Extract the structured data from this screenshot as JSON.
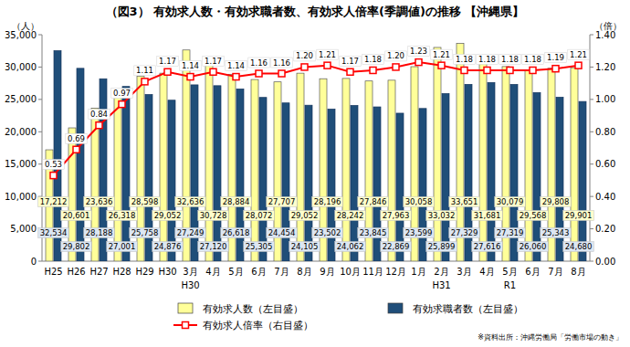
{
  "chart_data": {
    "type": "bar",
    "title": "（図3） 有効求人数・有効求職者数、有効求人倍率(季調値)の推移 【沖縄県】",
    "y_label": "（人）",
    "y2_label": "（倍）",
    "categories": [
      "H25",
      "H26",
      "H27",
      "H28",
      "H29",
      "H30",
      "3月",
      "4月",
      "5月",
      "6月",
      "7月",
      "8月",
      "9月",
      "10月",
      "11月",
      "12月",
      "1月",
      "2月",
      "3月",
      "4月",
      "5月",
      "6月",
      "7月",
      "8月"
    ],
    "x_sublabels": [
      null,
      null,
      null,
      null,
      null,
      null,
      "H30",
      null,
      null,
      null,
      null,
      null,
      null,
      null,
      null,
      null,
      null,
      "H31",
      null,
      null,
      "R1",
      null,
      null,
      null
    ],
    "series": [
      {
        "name": "有効求人数（左目盛）",
        "type": "bar",
        "color": "#ffff99",
        "values": [
          17212,
          20601,
          23636,
          26318,
          28598,
          29052,
          32636,
          30728,
          28884,
          28072,
          27707,
          29052,
          28196,
          28242,
          27846,
          27963,
          30058,
          33032,
          33651,
          31681,
          30079,
          29568,
          29808,
          29901
        ],
        "value_labels": [
          "17,212",
          "20,601",
          "23,636",
          "26,318",
          "28,598",
          "29,052",
          "32,636",
          "30,728",
          "28,884",
          "28,072",
          "27,707",
          "29,052",
          "28,196",
          "28,242",
          "27,846",
          "27,963",
          "30,058",
          "33,032",
          "33,651",
          "31,681",
          "30,079",
          "29,568",
          "29,808",
          "29,901"
        ]
      },
      {
        "name": "有効求職者数（左目盛）",
        "type": "bar",
        "color": "#1f4e79",
        "values": [
          32534,
          29802,
          28188,
          27001,
          25758,
          24876,
          27249,
          27120,
          26618,
          25305,
          24454,
          24105,
          23502,
          24062,
          23845,
          22869,
          23599,
          25899,
          27329,
          27616,
          27319,
          26060,
          25343,
          24680
        ],
        "value_labels": [
          "32,534",
          "29,802",
          "28,188",
          "27,001",
          "25,758",
          "24,876",
          "27,249",
          "27,120",
          "26,618",
          "25,305",
          "24,454",
          "24,105",
          "23,502",
          "24,062",
          "23,845",
          "22,869",
          "23,599",
          "25,899",
          "27,329",
          "27,616",
          "27,319",
          "26,060",
          "25,343",
          "24,680"
        ]
      },
      {
        "name": "有効求人倍率（右目盛）",
        "type": "line",
        "axis": "y2",
        "color": "#ff0000",
        "marker": "square",
        "values": [
          0.53,
          0.69,
          0.84,
          0.97,
          1.11,
          1.17,
          1.14,
          1.17,
          1.14,
          1.16,
          1.16,
          1.2,
          1.21,
          1.17,
          1.18,
          1.2,
          1.23,
          1.21,
          1.18,
          1.18,
          1.18,
          1.18,
          1.19,
          1.21
        ],
        "value_labels": [
          "0.53",
          "0.69",
          "0.84",
          "0.97",
          "1.11",
          "1.17",
          "1.14",
          "1.17",
          "1.14",
          "1.16",
          "1.16",
          "1.20",
          "1.21",
          "1.17",
          "1.18",
          "1.20",
          "1.23",
          "1.21",
          "1.18",
          "1.18",
          "1.18",
          "1.18",
          "1.19",
          "1.21"
        ]
      }
    ],
    "ylim": [
      0,
      35000
    ],
    "yticks": [
      0,
      {
        "value": 5000,
        "label": "5,000"
      },
      {
        "value": 10000,
        "label": "10,000"
      },
      {
        "value": 15000,
        "label": "15,000"
      },
      {
        "value": 20000,
        "label": "20,000"
      },
      {
        "value": 25000,
        "label": "25,000"
      },
      {
        "value": 30000,
        "label": "30,000"
      },
      {
        "value": 35000,
        "label": "35,000"
      }
    ],
    "y2lim": [
      0,
      1.4
    ],
    "y2ticks": [
      {
        "value": 0,
        "label": "0.00"
      },
      {
        "value": 0.2,
        "label": "0.20"
      },
      {
        "value": 0.4,
        "label": "0.40"
      },
      {
        "value": 0.6,
        "label": "0.60"
      },
      {
        "value": 0.8,
        "label": "0.80"
      },
      {
        "value": 1.0,
        "label": "1.00"
      },
      {
        "value": 1.2,
        "label": "1.20"
      },
      {
        "value": 1.4,
        "label": "1.40"
      }
    ],
    "grid": false,
    "legend": "bottom",
    "data_labels": true,
    "source": "※資料出所：沖縄労働局「労働市場の動き」"
  }
}
